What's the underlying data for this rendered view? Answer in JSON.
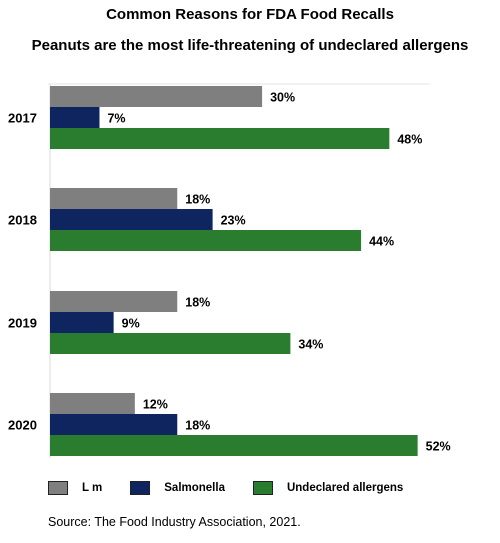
{
  "chart_data": {
    "type": "bar",
    "orientation": "horizontal",
    "title": "Common Reasons for FDA Food Recalls",
    "subtitle": "Peanuts are the most life-threatening of undeclared allergens",
    "categories": [
      "2017",
      "2018",
      "2019",
      "2020"
    ],
    "series": [
      {
        "name": "L m",
        "color": "#7f7f7f",
        "values": [
          30,
          18,
          18,
          12
        ]
      },
      {
        "name": "Salmonella",
        "color": "#0e2560",
        "values": [
          7,
          23,
          9,
          18
        ]
      },
      {
        "name": "Undeclared allergens",
        "color": "#2a7d2e",
        "values": [
          48,
          44,
          34,
          52
        ]
      }
    ],
    "value_suffix": "%",
    "xlim": [
      0,
      60
    ],
    "grid": false,
    "legend_position": "bottom"
  },
  "source": "Source: The Food Industry Association, 2021."
}
